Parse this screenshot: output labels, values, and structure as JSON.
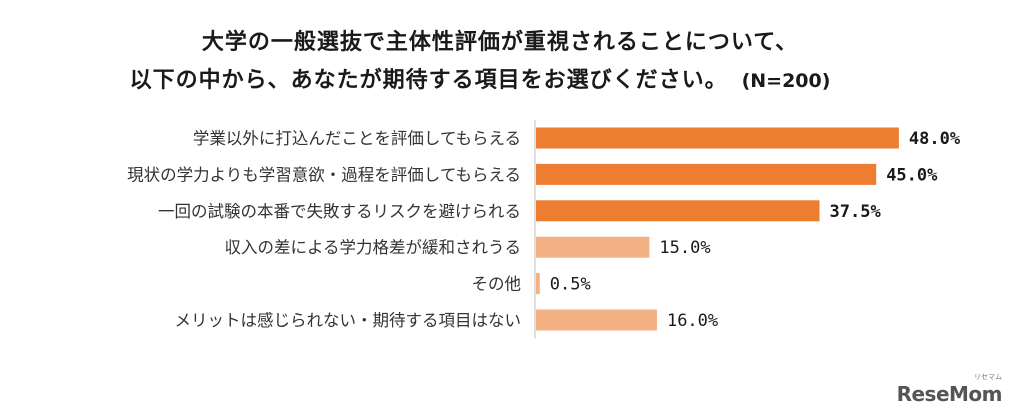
{
  "title_line1": "大学の一般選抜で主体性評価が重視されることについて、",
  "title_line2": "以下の中から、あなたが期待する項目をお選びください。",
  "n_label": "(N=200)",
  "logo": {
    "text": "ReseMom",
    "small": "リセマム"
  },
  "colors": {
    "highlight": "#ED7D31",
    "normal": "#F4B183",
    "axis": "#BFBFBF"
  },
  "chart_data": {
    "type": "bar",
    "orientation": "horizontal",
    "categories": [
      "学業以外に打込んだことを評価してもらえる",
      "現状の学力よりも学習意欲・過程を評価してもらえる",
      "一回の試験の本番で失敗するリスクを避けられる",
      "収入の差による学力格差が緩和されうる",
      "その他",
      "メリットは感じられない・期待する項目はない"
    ],
    "values": [
      48.0,
      45.0,
      37.5,
      15.0,
      0.5,
      16.0
    ],
    "value_labels": [
      "48.0%",
      "45.0%",
      "37.5%",
      "15.0%",
      "0.5%",
      "16.0%"
    ],
    "highlighted": [
      true,
      true,
      true,
      false,
      false,
      false
    ],
    "unit": "%",
    "xlim": [
      0,
      100
    ],
    "title": "大学の一般選抜で主体性評価が重視されることについて、以下の中から、あなたが期待する項目をお選びください。",
    "xlabel": "",
    "ylabel": ""
  }
}
